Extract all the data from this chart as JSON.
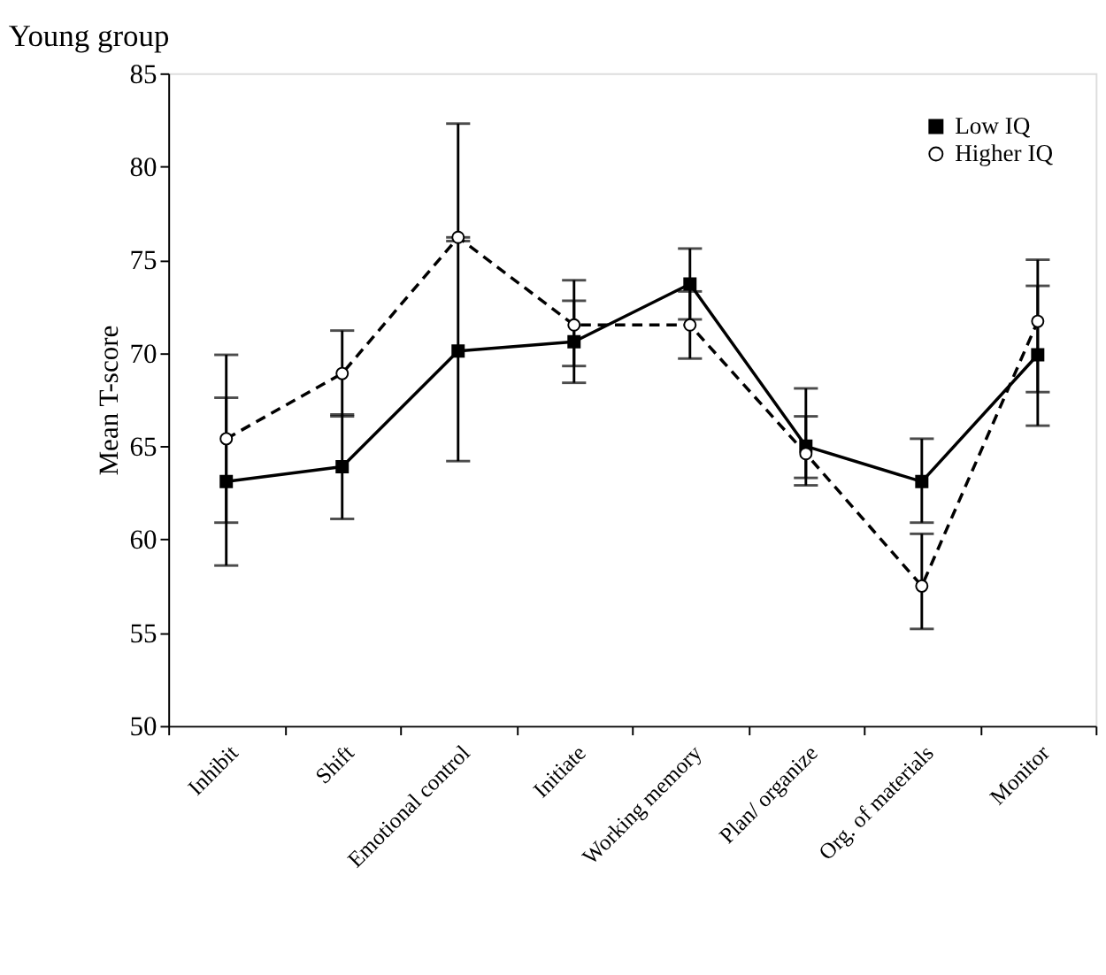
{
  "chart_data": {
    "type": "line",
    "title": "Young group",
    "ylabel": "Mean T-score",
    "categories": [
      "Inhibit",
      "Shift",
      "Emotional control",
      "Initiate",
      "Working memory",
      "Plan/ organize",
      "Org. of materials",
      "Monitor"
    ],
    "series": [
      {
        "name": "Low IQ",
        "color": "#000000",
        "marker": "square",
        "line_style": "solid",
        "values": [
          63.1,
          63.9,
          70.1,
          70.6,
          73.7,
          65.0,
          63.1,
          69.9
        ],
        "errors": [
          [
            58.6,
            67.6
          ],
          [
            61.1,
            66.7
          ],
          [
            64.2,
            76.0
          ],
          [
            68.4,
            72.8
          ],
          [
            71.8,
            75.6
          ],
          [
            63.3,
            66.6
          ],
          [
            60.9,
            65.4
          ],
          [
            66.1,
            73.6
          ]
        ]
      },
      {
        "name": "Higher IQ",
        "color": "#000000",
        "marker": "circle",
        "line_style": "dashed",
        "values": [
          65.4,
          68.9,
          76.2,
          71.5,
          71.5,
          64.6,
          57.5,
          71.7
        ],
        "errors": [
          [
            60.9,
            69.9
          ],
          [
            66.6,
            71.2
          ],
          [
            76.2,
            82.3
          ],
          [
            69.3,
            73.9
          ],
          [
            69.7,
            73.3
          ],
          [
            62.9,
            68.1
          ],
          [
            55.2,
            60.3
          ],
          [
            67.9,
            75.0
          ]
        ]
      }
    ],
    "ylim": [
      50,
      85
    ],
    "yticks": [
      50,
      55,
      60,
      65,
      70,
      75,
      80,
      85
    ],
    "grid": false,
    "legend": "top right"
  }
}
